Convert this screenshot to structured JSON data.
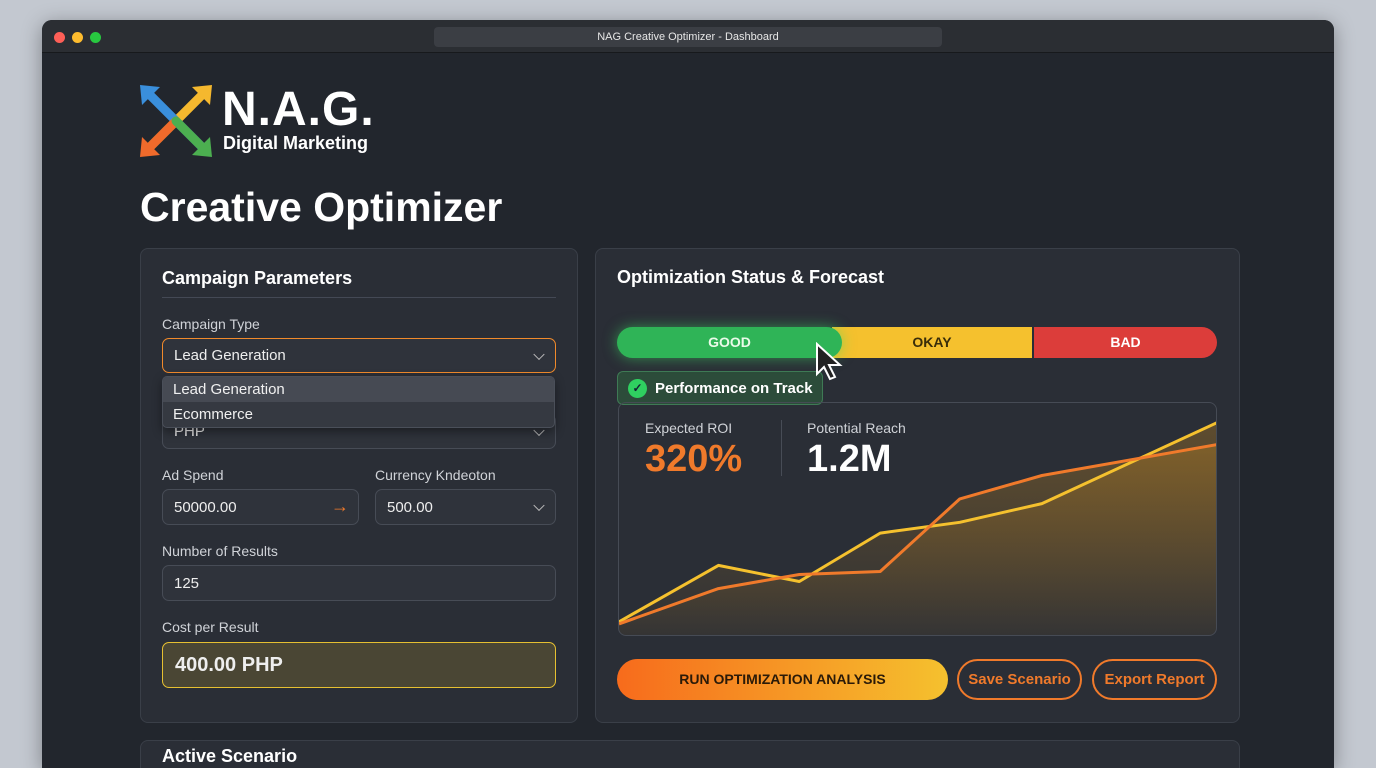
{
  "window": {
    "title": "NAG Creative Optimizer - Dashboard"
  },
  "brand": {
    "name": "N.A.G.",
    "tagline": "Digital Marketing",
    "logo_icon": "interlocking-arrows-logo"
  },
  "page_title": "Creative Optimizer",
  "campaign": {
    "title": "Campaign Parameters",
    "campaign_type": {
      "label": "Campaign Type",
      "value": "Lead Generation",
      "options": [
        "Lead Generation",
        "Ecommerce"
      ]
    },
    "currency": {
      "value": "PHP"
    },
    "ad_spend": {
      "label": "Ad Spend",
      "value": "50000.00",
      "icon": "arrow-right-icon"
    },
    "currency_selection": {
      "label": "Currency Kndeoton",
      "value": "500.00"
    },
    "results": {
      "label": "Number of Results",
      "value": "125"
    },
    "cost_per_result": {
      "label": "Cost per Result",
      "value": "400.00 PHP"
    }
  },
  "status": {
    "title": "Optimization Status & Forecast",
    "segments": [
      "GOOD",
      "OKAY",
      "BAD"
    ],
    "selected": "GOOD",
    "badge": "Performance on Track",
    "colors": {
      "good": "#2fb457",
      "okay": "#f5c12e",
      "bad": "#dc3d3a",
      "accent": "#f07a2b"
    }
  },
  "metrics": {
    "roi_label": "Expected ROI",
    "roi_value": "320%",
    "reach_label": "Potential Reach",
    "reach_value": "1.2M"
  },
  "chart_data": {
    "type": "line",
    "grid": false,
    "x": [
      0,
      16.6,
      30.1,
      43.6,
      56.9,
      70.6,
      100
    ],
    "series": [
      {
        "color": "#f5c12e",
        "values": [
          6.5,
          30.6,
          23.7,
          44.4,
          49,
          57,
          91.8
        ]
      },
      {
        "color": "#f07a2b",
        "values": [
          5.6,
          20.7,
          26.7,
          28,
          59,
          69,
          82.3
        ]
      }
    ],
    "xlim": [
      0,
      100
    ],
    "ylim": [
      0,
      100
    ]
  },
  "actions": {
    "run": "RUN OPTIMIZATION ANALYSIS",
    "save": "Save Scenario",
    "export": "Export Report"
  },
  "scenario": {
    "title": "Active Scenario"
  }
}
